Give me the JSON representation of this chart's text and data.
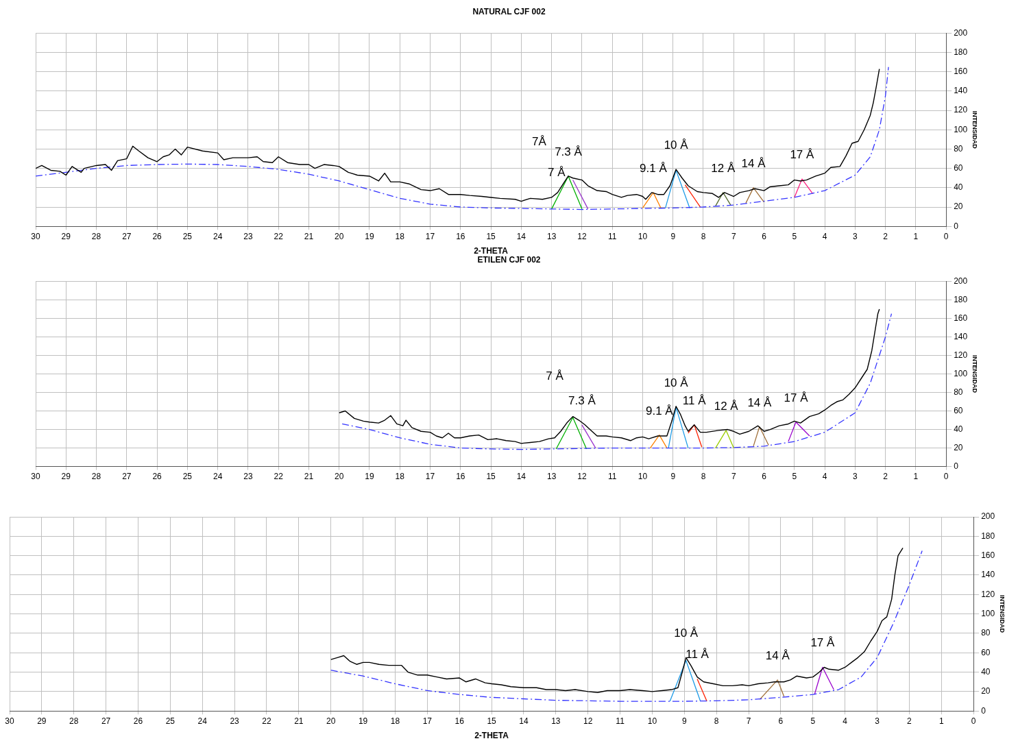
{
  "chart_data": [
    {
      "type": "line",
      "title": "NATURAL CJF 002",
      "xlabel": "2-THETA",
      "ylabel": "INTENSIDAD",
      "xlim": [
        30,
        0
      ],
      "xticks": [
        30,
        29,
        28,
        27,
        26,
        25,
        24,
        23,
        22,
        21,
        20,
        19,
        18,
        17,
        16,
        15,
        14,
        13,
        12,
        11,
        10,
        9,
        8,
        7,
        6,
        5,
        4,
        3,
        2,
        1,
        0
      ],
      "ylim": [
        0,
        200
      ],
      "yticks": [
        0,
        20,
        40,
        60,
        80,
        100,
        120,
        140,
        160,
        180,
        200
      ],
      "grid": true,
      "legend": false,
      "marker": "none",
      "series": [
        {
          "color": "#000000",
          "line_style": "solid",
          "x": [
            30,
            29.8,
            29.5,
            29.2,
            29,
            28.8,
            28.5,
            28.4,
            28,
            27.7,
            27.5,
            27.3,
            27,
            26.8,
            26.6,
            26.3,
            26,
            25.8,
            25.6,
            25.4,
            25.2,
            25,
            24.5,
            24,
            23.8,
            23.5,
            23,
            22.7,
            22.5,
            22.2,
            22,
            21.7,
            21.3,
            21,
            20.8,
            20.5,
            20.2,
            20,
            19.7,
            19.4,
            19,
            18.7,
            18.5,
            18.3,
            18,
            17.7,
            17.3,
            17,
            16.7,
            16.4,
            16,
            15.7,
            15.3,
            15,
            14.7,
            14.2,
            14,
            13.7,
            13.3,
            13,
            12.8,
            12.6,
            12.45,
            12.3,
            12,
            11.8,
            11.5,
            11.2,
            11,
            10.7,
            10.5,
            10.2,
            10,
            9.9,
            9.7,
            9.5,
            9.3,
            9.1,
            8.9,
            8.7,
            8.5,
            8.2,
            8,
            7.7,
            7.5,
            7.3,
            7,
            6.8,
            6.5,
            6.3,
            6,
            5.8,
            5.5,
            5.2,
            5,
            4.8,
            4.6,
            4.3,
            4,
            3.8,
            3.5,
            3.3,
            3.1,
            2.9,
            2.7,
            2.5,
            2.4,
            2.3,
            2.2
          ],
          "values": [
            60,
            63,
            58,
            57,
            53,
            62,
            56,
            60,
            63,
            64,
            58,
            68,
            70,
            83,
            78,
            71,
            67,
            72,
            74,
            80,
            74,
            82,
            78,
            76,
            69,
            71,
            71,
            72,
            67,
            66,
            72,
            66,
            64,
            64,
            60,
            64,
            63,
            62,
            56,
            53,
            52,
            47,
            55,
            46,
            46,
            44,
            38,
            37,
            39,
            33,
            33,
            32,
            31,
            30,
            29,
            28,
            26,
            29,
            28,
            30,
            35,
            45,
            52,
            50,
            48,
            42,
            37,
            36,
            33,
            30,
            32,
            33,
            31,
            28,
            35,
            33,
            33,
            42,
            59,
            50,
            42,
            36,
            35,
            34,
            30,
            35,
            31,
            35,
            37,
            39,
            37,
            41,
            42,
            43,
            48,
            47,
            48,
            52,
            55,
            61,
            62,
            73,
            86,
            88,
            100,
            115,
            128,
            145,
            163
          ]
        },
        {
          "color": "#3333ff",
          "line_style": "dashed",
          "x": [
            30,
            29,
            28,
            27,
            26,
            25,
            24,
            23,
            22,
            21,
            20,
            19,
            18,
            17,
            16,
            15,
            14,
            13,
            12,
            11,
            10,
            9,
            8,
            7,
            6,
            5,
            4,
            3,
            2.5,
            2.2,
            2,
            1.9
          ],
          "values": [
            52,
            56,
            60,
            63,
            64,
            64.5,
            64,
            62,
            59,
            54,
            47,
            38,
            29,
            23,
            20,
            19,
            18.5,
            18,
            17.5,
            18,
            18.5,
            19,
            20,
            22,
            26,
            30,
            37,
            53,
            72,
            100,
            135,
            165
          ]
        },
        {
          "color": "#00b000",
          "line_style": "solid",
          "x": [
            13,
            12.45,
            12
          ],
          "values": [
            18,
            52,
            18
          ]
        },
        {
          "color": "#9933cc",
          "line_style": "solid",
          "x": [
            12.3,
            11.8
          ],
          "values": [
            48,
            18
          ]
        },
        {
          "color": "#ff8000",
          "line_style": "solid",
          "x": [
            10,
            9.65,
            9.4
          ],
          "values": [
            19,
            35,
            19
          ]
        },
        {
          "color": "#1e9be6",
          "line_style": "solid",
          "x": [
            9.25,
            8.9,
            8.45
          ],
          "values": [
            19,
            58,
            19
          ]
        },
        {
          "color": "#ff2000",
          "line_style": "solid",
          "x": [
            8.6,
            8.1
          ],
          "values": [
            43,
            20
          ]
        },
        {
          "color": "#556b2f",
          "line_style": "solid",
          "x": [
            7.6,
            7.35,
            7.1
          ],
          "values": [
            21,
            35,
            22
          ]
        },
        {
          "color": "#a0703a",
          "line_style": "solid",
          "x": [
            6.6,
            6.35,
            6
          ],
          "values": [
            24,
            40,
            25
          ]
        },
        {
          "color": "#ff2080",
          "line_style": "solid",
          "x": [
            5,
            4.75,
            4.4
          ],
          "values": [
            30,
            49,
            34
          ]
        }
      ],
      "annotations": [
        "7Å",
        "7 Å",
        {
          "text": "7.3 Å",
          "x": 12.45,
          "y": 52
        },
        {
          "text": "9.1 Å",
          "x": 9.65,
          "y": 35
        },
        {
          "text": "10 Å",
          "x": 8.9,
          "y": 59
        },
        {
          "text": "12 Å",
          "x": 7.35,
          "y": 35
        },
        {
          "text": "14 Å",
          "x": 6.35,
          "y": 40
        },
        {
          "text": "17 Å",
          "x": 4.75,
          "y": 49
        }
      ]
    },
    {
      "type": "line",
      "title": "ETILEN CJF 002",
      "ylabel": "INTENSIDAD",
      "xlim": [
        30,
        0
      ],
      "xticks": [
        30,
        29,
        28,
        27,
        26,
        25,
        24,
        23,
        22,
        21,
        20,
        19,
        18,
        17,
        16,
        15,
        14,
        13,
        12,
        11,
        10,
        9,
        8,
        7,
        6,
        5,
        4,
        3,
        2,
        1,
        0
      ],
      "ylim": [
        0,
        200
      ],
      "yticks": [
        0,
        20,
        40,
        60,
        80,
        100,
        120,
        140,
        160,
        180,
        200
      ],
      "grid": true,
      "legend": false,
      "marker": "none",
      "series": [
        {
          "color": "#000000",
          "line_style": "solid",
          "x": [
            20,
            19.8,
            19.5,
            19.2,
            19,
            18.7,
            18.5,
            18.3,
            18.1,
            17.9,
            17.8,
            17.6,
            17.3,
            17,
            16.8,
            16.6,
            16.4,
            16.2,
            16,
            15.7,
            15.4,
            15.1,
            14.8,
            14.5,
            14.2,
            14,
            13.7,
            13.4,
            13.1,
            12.9,
            12.7,
            12.5,
            12.3,
            12.1,
            11.9,
            11.7,
            11.5,
            11.2,
            11,
            10.7,
            10.4,
            10.2,
            10,
            9.8,
            9.5,
            9.2,
            9.05,
            8.9,
            8.75,
            8.6,
            8.5,
            8.3,
            8.1,
            7.9,
            7.5,
            7.2,
            7,
            6.8,
            6.5,
            6.2,
            6,
            5.8,
            5.5,
            5.2,
            5,
            4.8,
            4.5,
            4.2,
            4,
            3.8,
            3.6,
            3.4,
            3.2,
            3,
            2.8,
            2.6,
            2.45,
            2.35,
            2.25,
            2.2
          ],
          "values": [
            58,
            60,
            52,
            49,
            48,
            47,
            50,
            55,
            46,
            44,
            50,
            42,
            38,
            37,
            33,
            31,
            36,
            31,
            31,
            33,
            34,
            29,
            30,
            28,
            27,
            25,
            26,
            27,
            30,
            31,
            38,
            47,
            54,
            50,
            45,
            39,
            33,
            33,
            32,
            31,
            28,
            31,
            32,
            30,
            33,
            33,
            48,
            65,
            56,
            44,
            38,
            45,
            37,
            37,
            39,
            40,
            38,
            35,
            38,
            44,
            38,
            40,
            44,
            46,
            49,
            47,
            54,
            57,
            61,
            66,
            70,
            72,
            78,
            85,
            95,
            105,
            125,
            145,
            165,
            170
          ]
        },
        {
          "color": "#3333ff",
          "line_style": "dashed",
          "x": [
            19.9,
            19,
            18,
            17,
            16,
            15,
            14,
            13,
            12,
            11,
            10,
            9,
            8,
            7,
            6,
            5,
            4,
            3,
            2.5,
            2.2,
            2,
            1.8
          ],
          "values": [
            46,
            40,
            31,
            24,
            20,
            19,
            18.5,
            19,
            19.5,
            20,
            20,
            20,
            20,
            20.5,
            22,
            27,
            37,
            58,
            90,
            120,
            140,
            165
          ]
        },
        {
          "color": "#00b000",
          "line_style": "solid",
          "x": [
            12.85,
            12.3,
            11.85
          ],
          "values": [
            19,
            53,
            19
          ]
        },
        {
          "color": "#9933cc",
          "line_style": "solid",
          "x": [
            12,
            11.55
          ],
          "values": [
            45,
            20
          ]
        },
        {
          "color": "#ff8000",
          "line_style": "solid",
          "x": [
            9.75,
            9.45,
            9.2
          ],
          "values": [
            20,
            34,
            20
          ]
        },
        {
          "color": "#1e9be6",
          "line_style": "solid",
          "x": [
            9.15,
            8.9,
            8.5
          ],
          "values": [
            20,
            64,
            20
          ]
        },
        {
          "color": "#ff2000",
          "line_style": "solid",
          "x": [
            8.5,
            8.3,
            8.05
          ],
          "values": [
            36,
            45,
            21
          ]
        },
        {
          "color": "#99cc00",
          "line_style": "solid",
          "x": [
            7.6,
            7.25,
            7
          ],
          "values": [
            20,
            39,
            20
          ]
        },
        {
          "color": "#a0703a",
          "line_style": "solid",
          "x": [
            6.35,
            6.15,
            5.85
          ],
          "values": [
            22,
            43,
            23
          ]
        },
        {
          "color": "#9900cc",
          "line_style": "solid",
          "x": [
            5.2,
            4.95,
            4.5
          ],
          "values": [
            27,
            48,
            33
          ]
        }
      ],
      "annotations": [
        "7 Å",
        {
          "text": "7.3 Å",
          "x": 12,
          "y": 45
        },
        {
          "text": "9.1 Å",
          "x": 9.45,
          "y": 34
        },
        {
          "text": "10 Å",
          "x": 8.9,
          "y": 64
        },
        {
          "text": "11 Å",
          "x": 8.3,
          "y": 45
        },
        {
          "text": "12 Å",
          "x": 7.25,
          "y": 39
        },
        {
          "text": "14 Å",
          "x": 6.15,
          "y": 43
        },
        {
          "text": "17 Å",
          "x": 4.95,
          "y": 48
        }
      ]
    },
    {
      "type": "line",
      "xlabel": "2-THETA",
      "ylabel": "INTENSIDAD",
      "xlim": [
        30,
        0
      ],
      "xticks": [
        30,
        29,
        28,
        27,
        26,
        25,
        24,
        23,
        22,
        21,
        20,
        19,
        18,
        17,
        16,
        15,
        14,
        13,
        12,
        11,
        10,
        9,
        8,
        7,
        6,
        5,
        4,
        3,
        2,
        1,
        0
      ],
      "ylim": [
        0,
        200
      ],
      "yticks": [
        0,
        20,
        40,
        60,
        80,
        100,
        120,
        140,
        160,
        180,
        200
      ],
      "grid": true,
      "legend": false,
      "marker": "none",
      "series": [
        {
          "color": "#000000",
          "line_style": "solid",
          "x": [
            20,
            19.8,
            19.6,
            19.4,
            19.2,
            19,
            18.8,
            18.5,
            18.2,
            17.8,
            17.6,
            17.3,
            17,
            16.7,
            16.4,
            16,
            15.8,
            15.5,
            15.2,
            15,
            14.7,
            14.4,
            14,
            13.6,
            13.3,
            13,
            12.7,
            12.4,
            12,
            11.7,
            11.4,
            11,
            10.7,
            10.3,
            10,
            9.7,
            9.4,
            9.2,
            9.05,
            8.95,
            8.8,
            8.6,
            8.4,
            8.1,
            7.8,
            7.5,
            7.2,
            7,
            6.7,
            6.4,
            6.2,
            5.9,
            5.7,
            5.5,
            5.2,
            5,
            4.8,
            4.65,
            4.5,
            4.2,
            4,
            3.8,
            3.6,
            3.4,
            3.2,
            3,
            2.85,
            2.7,
            2.55,
            2.45,
            2.35,
            2.2
          ],
          "values": [
            53,
            55,
            57,
            51,
            48,
            50,
            50,
            48,
            47,
            47,
            40,
            37,
            37,
            35,
            33,
            34,
            30,
            33,
            29,
            28,
            27,
            25,
            24,
            24,
            22,
            22,
            21,
            22,
            20,
            19,
            21,
            21,
            22,
            21,
            20,
            21,
            22,
            24,
            42,
            55,
            47,
            35,
            30,
            28,
            26,
            26,
            27,
            26,
            28,
            29,
            30,
            30,
            32,
            36,
            34,
            35,
            40,
            45,
            43,
            42,
            45,
            50,
            55,
            61,
            72,
            82,
            93,
            97,
            115,
            140,
            160,
            168
          ]
        },
        {
          "color": "#3333ff",
          "line_style": "dashed",
          "x": [
            20,
            19,
            18,
            17,
            16,
            15,
            14,
            13,
            12,
            11,
            10,
            9,
            8,
            7,
            6,
            5,
            4.2,
            3.5,
            3,
            2.5,
            2,
            1.6
          ],
          "values": [
            42,
            36,
            28,
            21,
            17,
            14,
            12.5,
            11,
            10.5,
            10,
            10,
            10,
            10.5,
            11.5,
            14,
            17,
            22,
            35,
            55,
            90,
            130,
            165
          ]
        },
        {
          "color": "#1e9be6",
          "line_style": "solid",
          "x": [
            9.45,
            8.95,
            8.5
          ],
          "values": [
            10,
            52,
            10
          ]
        },
        {
          "color": "#ff2000",
          "line_style": "solid",
          "x": [
            8.6,
            8.3
          ],
          "values": [
            33,
            10
          ]
        },
        {
          "color": "#a0703a",
          "line_style": "solid",
          "x": [
            6.65,
            6.1,
            5.9
          ],
          "values": [
            12,
            32,
            15
          ]
        },
        {
          "color": "#9900cc",
          "line_style": "solid",
          "x": [
            4.95,
            4.7,
            4.35
          ],
          "values": [
            17,
            45,
            22
          ]
        }
      ],
      "annotations": [
        {
          "text": "10 Å",
          "x": 8.95,
          "y": 55
        },
        {
          "text": "11 Å",
          "x": 8.6,
          "y": 33
        },
        {
          "text": "14 Å",
          "x": 6.1,
          "y": 32
        },
        {
          "text": "17 Å",
          "x": 4.7,
          "y": 45
        }
      ]
    }
  ]
}
